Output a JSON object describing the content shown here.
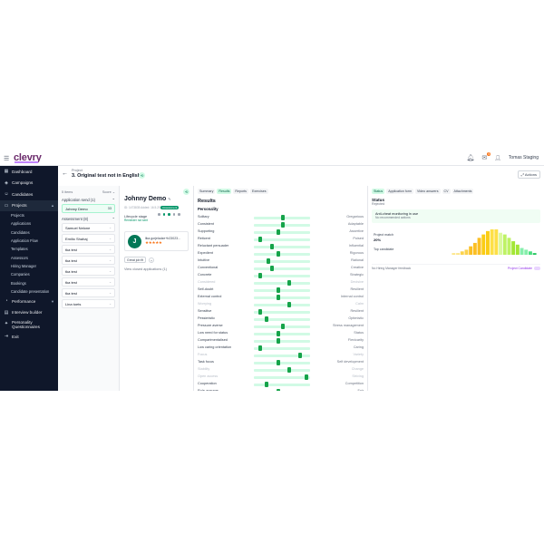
{
  "app": {
    "logo": "clevry",
    "user_name": "Tomas Staging",
    "notification_count": "5"
  },
  "sidebar": {
    "items": [
      {
        "label": "Dashboard",
        "icon": "grid-icon"
      },
      {
        "label": "Campaigns",
        "icon": "megaphone-icon"
      },
      {
        "label": "Candidates",
        "icon": "users-icon"
      },
      {
        "label": "Projects",
        "icon": "folder-icon",
        "expanded": true
      },
      {
        "label": "Performance",
        "icon": "chart-icon"
      },
      {
        "label": "Interview builder",
        "icon": "clipboard-icon"
      },
      {
        "label": "Personality Questionnaires",
        "icon": "brain-icon"
      },
      {
        "label": "Exit",
        "icon": "exit-icon"
      }
    ],
    "sub_items": [
      "Projects",
      "Applications",
      "Candidates",
      "Application Flow",
      "Templates",
      "Assessors",
      "Hiring Manager",
      "Companies",
      "Bookings",
      "Candidate presentation"
    ]
  },
  "header": {
    "crumb": "Project",
    "title": "3. Original test not in English",
    "actions_label": "Actions"
  },
  "list": {
    "count": "5 items",
    "sort_label": "Score",
    "section1": "Application send (1)",
    "section1_cards": [
      {
        "name": "Johnny Demo",
        "score": "33"
      }
    ],
    "section2": "Assessment (8)",
    "section2_cards": [
      "Samuel Nelone",
      "Emilio Shahaj",
      "tka test",
      "tka test",
      "tka test",
      "tka test",
      "tka test",
      "Lina toets"
    ]
  },
  "candidate": {
    "name": "Johnny Demo",
    "meta": "ID: 1473835 Added: 16.5.2023 16:59 PM",
    "lifecycle_label": "Lifecycle stage",
    "lifecycle_sub": "Reminder not sent",
    "stage_pill": "Assessment",
    "avatar_letter": "J",
    "email": "lika.gorjeladze+b23023...",
    "stars": "★★★★★",
    "tag": "Great job fit",
    "view_link": "View closed applications (1)"
  },
  "results": {
    "tabs": [
      "Summary",
      "Results",
      "Reports",
      "Exercises"
    ],
    "active_tab": 1,
    "title": "Results",
    "section": "Personality",
    "traits": [
      {
        "left": "Solitary",
        "right": "Gregarious",
        "value": 0.52,
        "dim": false
      },
      {
        "left": "Consistent",
        "right": "Adaptable",
        "value": 0.52,
        "dim": false
      },
      {
        "left": "Supporting",
        "right": "Assertive",
        "value": 0.43,
        "dim": false
      },
      {
        "left": "Reticent",
        "right": "Poised",
        "value": 0.12,
        "dim": false
      },
      {
        "left": "Reluctant persuader",
        "right": "Influential",
        "value": 0.33,
        "dim": false
      },
      {
        "left": "Expedient",
        "right": "Rigorous",
        "value": 0.43,
        "dim": false
      },
      {
        "left": "Intuitive",
        "right": "Rational",
        "value": 0.25,
        "dim": false
      },
      {
        "left": "Conventional",
        "right": "Creative",
        "value": 0.33,
        "dim": false
      },
      {
        "left": "Concrete",
        "right": "Strategic",
        "value": 0.12,
        "dim": false
      },
      {
        "left": "Considered",
        "right": "Decisive",
        "value": 0.63,
        "dim": true
      },
      {
        "left": "Self-doubt",
        "right": "Resilient",
        "value": 0.43,
        "dim": false
      },
      {
        "left": "External control",
        "right": "Internal control",
        "value": 0.43,
        "dim": false
      },
      {
        "left": "Worrying",
        "right": "Calm",
        "value": 0.63,
        "dim": true
      },
      {
        "left": "Sensitive",
        "right": "Resilient",
        "value": 0.12,
        "dim": false
      },
      {
        "left": "Pessimistic",
        "right": "Optimistic",
        "value": 0.22,
        "dim": false
      },
      {
        "left": "Pressure averse",
        "right": "Stress management",
        "value": 0.52,
        "dim": false
      },
      {
        "left": "Low need for status",
        "right": "Status",
        "value": 0.43,
        "dim": false
      },
      {
        "left": "Compartmentalised",
        "right": "Flexicarity",
        "value": 0.43,
        "dim": false
      },
      {
        "left": "Low caring orientation",
        "right": "Caring",
        "value": 0.12,
        "dim": false
      },
      {
        "left": "Focus",
        "right": "Variety",
        "value": 0.83,
        "dim": true
      },
      {
        "left": "Task focus",
        "right": "Self development",
        "value": 0.43,
        "dim": false
      },
      {
        "left": "Stability",
        "right": "Change",
        "value": 0.63,
        "dim": true
      },
      {
        "left": "Open access",
        "right": "Striving",
        "value": 0.93,
        "dim": true
      },
      {
        "left": "Cooperation",
        "right": "Competition",
        "value": 0.22,
        "dim": false
      },
      {
        "left": "Rule-average",
        "right": "Fair",
        "value": 0.43,
        "dim": false
      }
    ]
  },
  "status_panel": {
    "tabs": [
      "Status",
      "Application form",
      "Video answers",
      "CV",
      "Attachments"
    ],
    "active_tab": 0,
    "title": "Status",
    "sub": "Rejected",
    "box_title": "Anti-cheat monitoring in use",
    "box_sub": "No recommended actions",
    "match_label": "Project match",
    "match_value": "20%",
    "top_label": "Top candidate",
    "histogram": [
      1,
      1,
      2,
      3,
      5,
      7,
      10,
      12,
      14,
      15,
      15,
      13,
      12,
      10,
      8,
      6,
      4,
      3,
      2,
      1
    ],
    "hist_colors": [
      "#fde68a",
      "#fde68a",
      "#fcd34d",
      "#fcd34d",
      "#fbbf24",
      "#fbbf24",
      "#fbbf24",
      "#facc15",
      "#facc15",
      "#fde047",
      "#fde047",
      "#d9f99d",
      "#bef264",
      "#bef264",
      "#a3e635",
      "#a3e635",
      "#86efac",
      "#86efac",
      "#4ade80",
      "#22c55e"
    ],
    "feedback_label": "No Hiring Manager feedback",
    "candidate_view": "Project Candidate"
  }
}
